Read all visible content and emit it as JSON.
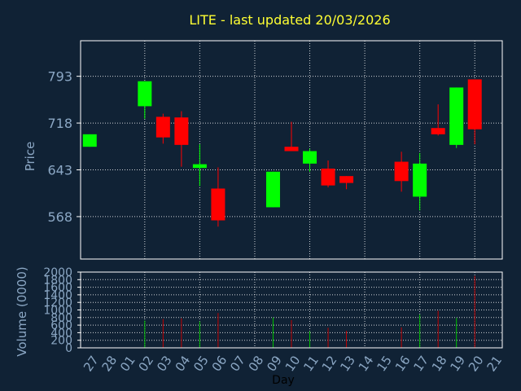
{
  "title": "LITE - last updated 20/03/2026",
  "colors": {
    "background": "#102235",
    "title": "#ffff33",
    "axis_text": "#8ba7c4",
    "frame": "#ffffff",
    "grid": "#ffffff",
    "up": "#00ff00",
    "down": "#ff0000",
    "up_volume": "#00c000",
    "down_volume": "#c00000"
  },
  "chart_data": [
    {
      "type": "candlestick",
      "title": "LITE - last updated 20/03/2026",
      "ylabel": "Price",
      "xlabel": "",
      "ylim": [
        500,
        850
      ],
      "y_ticks": [
        568,
        643,
        718,
        793
      ],
      "grid": true,
      "categories": [
        "27",
        "28",
        "01",
        "02",
        "03",
        "04",
        "05",
        "06",
        "07",
        "08",
        "09",
        "10",
        "11",
        "12",
        "13",
        "14",
        "15",
        "16",
        "17",
        "18",
        "19",
        "20",
        "21"
      ],
      "candles": [
        {
          "day": "27",
          "open": 680,
          "close": 700,
          "high": 700,
          "low": 680
        },
        {
          "day": "02",
          "open": 745,
          "close": 785,
          "high": 785,
          "low": 725
        },
        {
          "day": "03",
          "open": 728,
          "close": 695,
          "high": 733,
          "low": 685
        },
        {
          "day": "04",
          "open": 727,
          "close": 683,
          "high": 737,
          "low": 648
        },
        {
          "day": "05",
          "open": 646,
          "close": 652,
          "high": 684,
          "low": 617
        },
        {
          "day": "06",
          "open": 613,
          "close": 562,
          "high": 647,
          "low": 552
        },
        {
          "day": "09",
          "open": 583,
          "close": 640,
          "high": 640,
          "low": 583
        },
        {
          "day": "10",
          "open": 680,
          "close": 673,
          "high": 720,
          "low": 673
        },
        {
          "day": "11",
          "open": 653,
          "close": 673,
          "high": 677,
          "low": 640
        },
        {
          "day": "12",
          "open": 645,
          "close": 618,
          "high": 658,
          "low": 615
        },
        {
          "day": "13",
          "open": 633,
          "close": 622,
          "high": 633,
          "low": 612
        },
        {
          "day": "16",
          "open": 656,
          "close": 625,
          "high": 672,
          "low": 608
        },
        {
          "day": "17",
          "open": 600,
          "close": 653,
          "high": 670,
          "low": 578
        },
        {
          "day": "18",
          "open": 710,
          "close": 700,
          "high": 748,
          "low": 698
        },
        {
          "day": "19",
          "open": 683,
          "close": 775,
          "high": 775,
          "low": 678
        },
        {
          "day": "20",
          "open": 788,
          "close": 708,
          "high": 788,
          "low": 684
        }
      ]
    },
    {
      "type": "bar",
      "ylabel": "Volume (0000)",
      "xlabel": "Day",
      "ylim": [
        0,
        2000
      ],
      "y_ticks": [
        0,
        200,
        400,
        600,
        800,
        1000,
        1200,
        1400,
        1600,
        1800,
        2000
      ],
      "grid": true,
      "categories": [
        "27",
        "28",
        "01",
        "02",
        "03",
        "04",
        "05",
        "06",
        "07",
        "08",
        "09",
        "10",
        "11",
        "12",
        "13",
        "14",
        "15",
        "16",
        "17",
        "18",
        "19",
        "20",
        "21"
      ],
      "bars": [
        {
          "day": "02",
          "value": 720,
          "direction": "up"
        },
        {
          "day": "03",
          "value": 760,
          "direction": "down"
        },
        {
          "day": "04",
          "value": 780,
          "direction": "down"
        },
        {
          "day": "05",
          "value": 700,
          "direction": "up"
        },
        {
          "day": "06",
          "value": 920,
          "direction": "down"
        },
        {
          "day": "09",
          "value": 800,
          "direction": "up"
        },
        {
          "day": "10",
          "value": 730,
          "direction": "down"
        },
        {
          "day": "11",
          "value": 440,
          "direction": "up"
        },
        {
          "day": "12",
          "value": 530,
          "direction": "down"
        },
        {
          "day": "13",
          "value": 450,
          "direction": "down"
        },
        {
          "day": "16",
          "value": 540,
          "direction": "down"
        },
        {
          "day": "17",
          "value": 880,
          "direction": "up"
        },
        {
          "day": "18",
          "value": 980,
          "direction": "down"
        },
        {
          "day": "19",
          "value": 790,
          "direction": "up"
        },
        {
          "day": "20",
          "value": 1900,
          "direction": "down"
        }
      ]
    }
  ]
}
